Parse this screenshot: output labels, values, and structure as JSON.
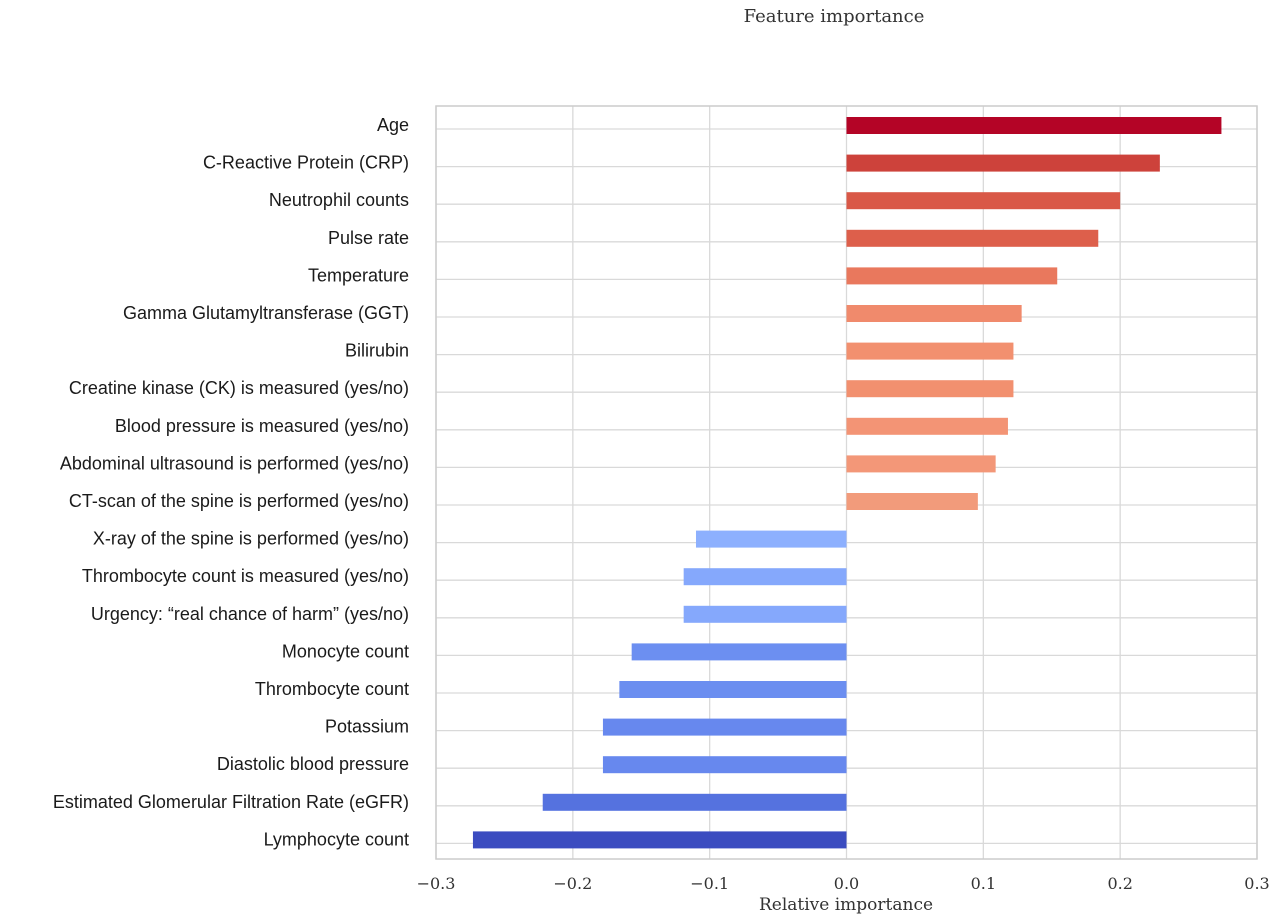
{
  "chart_data": {
    "type": "bar",
    "orientation": "horizontal",
    "title": "Feature importance",
    "xlabel": "Relative importance",
    "ylabel": "",
    "xlim": [
      -0.3,
      0.3
    ],
    "xticks": [
      -0.3,
      -0.2,
      -0.1,
      0.0,
      0.1,
      0.2,
      0.3
    ],
    "xtick_labels": [
      "−0.3",
      "−0.2",
      "−0.1",
      "0.0",
      "0.1",
      "0.2",
      "0.3"
    ],
    "grid": true,
    "legend": "none",
    "categories": [
      "Age",
      "C-Reactive Protein (CRP)",
      "Neutrophil counts",
      "Pulse rate",
      "Temperature",
      "Gamma Glutamyltransferase (GGT)",
      "Bilirubin",
      "Creatine kinase (CK) is measured (yes/no)",
      "Blood pressure is measured (yes/no)",
      "Abdominal ultrasound is performed (yes/no)",
      "CT-scan of the spine is performed (yes/no)",
      "X-ray of the spine is performed (yes/no)",
      "Thrombocyte count is measured (yes/no)",
      "Urgency: “real chance of harm” (yes/no)",
      "Monocyte count",
      "Thrombocyte count",
      "Potassium",
      "Diastolic blood pressure",
      "Estimated Glomerular Filtration Rate (eGFR)",
      "Lymphocyte count"
    ],
    "values": [
      0.274,
      0.229,
      0.2,
      0.184,
      0.154,
      0.128,
      0.122,
      0.122,
      0.118,
      0.109,
      0.096,
      -0.11,
      -0.119,
      -0.119,
      -0.157,
      -0.166,
      -0.178,
      -0.178,
      -0.222,
      -0.273
    ],
    "colors": [
      "#b40426",
      "#cd423b",
      "#d95847",
      "#dd5f4b",
      "#e9785d",
      "#f08a6c",
      "#f2906f",
      "#f2906f",
      "#f39475",
      "#f39778",
      "#f29b7b",
      "#8db0fe",
      "#85a8fc",
      "#85a8fc",
      "#6c8ff1",
      "#6b8ef0",
      "#6788ee",
      "#6788ee",
      "#5572df",
      "#3b4cc0"
    ]
  }
}
